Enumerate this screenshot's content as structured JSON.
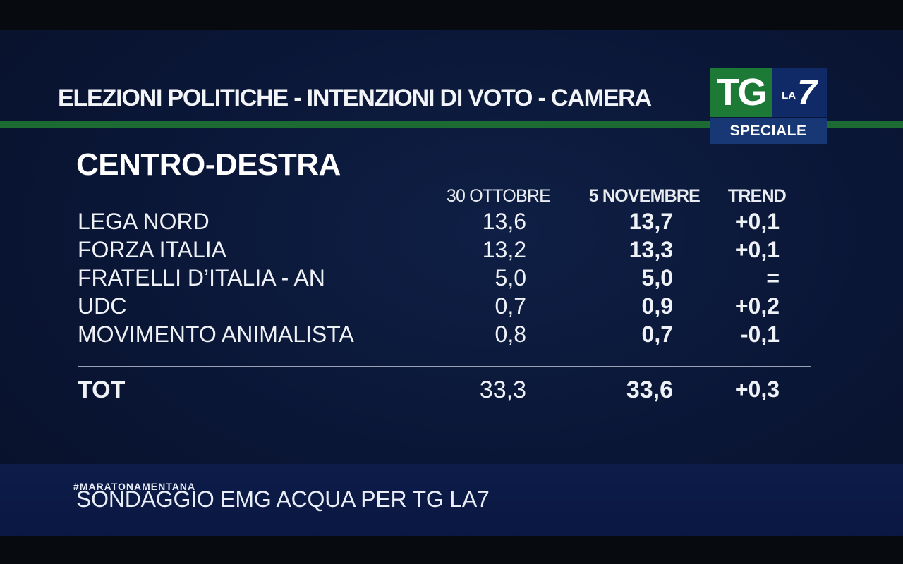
{
  "header": {
    "headline": "ELEZIONI POLITICHE - INTENZIONI DI VOTO - CAMERA"
  },
  "logo": {
    "tg": "TG",
    "la": "LA",
    "seven": "7",
    "speciale": "SPECIALE"
  },
  "colors": {
    "accent_green": "#1b6b32",
    "background_navy": "#0a1636",
    "text": "#ffffff"
  },
  "chart_data": {
    "type": "table",
    "title": "CENTRO-DESTRA",
    "columns": [
      "30 OTTOBRE",
      "5 NOVEMBRE",
      "TREND"
    ],
    "rows": [
      {
        "party": "LEGA NORD",
        "v1": "13,6",
        "v2": "13,7",
        "trend": "+0,1"
      },
      {
        "party": "FORZA ITALIA",
        "v1": "13,2",
        "v2": "13,3",
        "trend": "+0,1"
      },
      {
        "party": "FRATELLI D’ITALIA - AN",
        "v1": "5,0",
        "v2": "5,0",
        "trend": "="
      },
      {
        "party": "UDC",
        "v1": "0,7",
        "v2": "0,9",
        "trend": "+0,2"
      },
      {
        "party": "MOVIMENTO ANIMALISTA",
        "v1": "0,8",
        "v2": "0,7",
        "trend": "-0,1"
      }
    ],
    "total": {
      "party": "TOT",
      "v1": "33,3",
      "v2": "33,6",
      "trend": "+0,3"
    }
  },
  "footer": {
    "hashtag": "#MARATONAMENTANA",
    "source": "SONDAGGIO EMG ACQUA PER TG LA7"
  }
}
